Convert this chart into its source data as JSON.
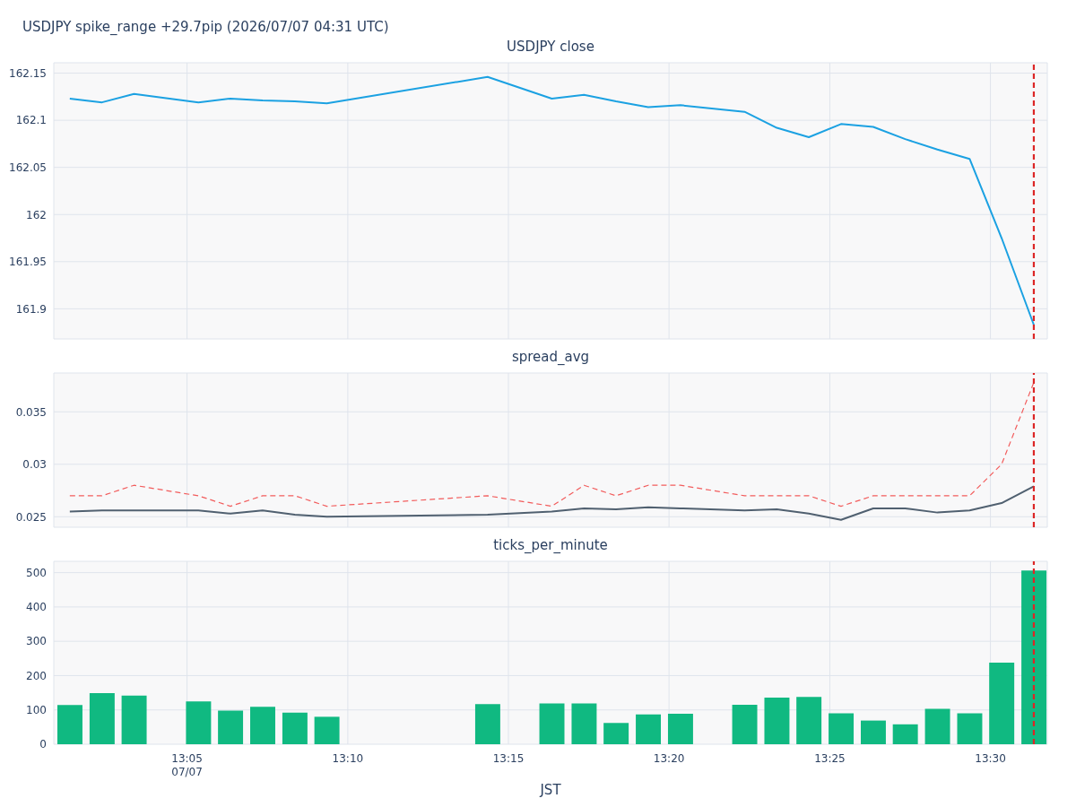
{
  "chart_data": [
    {
      "type": "line",
      "title": "USDJPY close",
      "annotations": [
        "USDJPY spike_range +29.7pip (2026/07/07 04:31 UTC)"
      ],
      "x": [
        13.0225,
        13.0392,
        13.0558,
        13.0892,
        13.1058,
        13.1225,
        13.1392,
        13.1558,
        13.2392,
        13.2725,
        13.2892,
        13.3058,
        13.3225,
        13.3392,
        13.3725,
        13.3892,
        13.4058,
        13.4225,
        13.4392,
        13.4558,
        13.4725,
        13.4892,
        13.5058,
        13.5225
      ],
      "series": [
        {
          "color": "#1ba1e2",
          "values": [
            162.123,
            162.119,
            162.128,
            162.119,
            162.123,
            162.121,
            162.12,
            162.118,
            162.146,
            162.123,
            162.127,
            162.12,
            162.114,
            162.116,
            162.109,
            162.092,
            162.082,
            162.096,
            162.093,
            162.08,
            162.069,
            162.059,
            161.975,
            161.883
          ]
        }
      ],
      "xlim": [
        13.0142,
        13.5295
      ],
      "xticks": [
        13.0833,
        13.1667,
        13.25,
        13.3333,
        13.4167,
        13.5
      ],
      "ylim": [
        161.868,
        162.161
      ],
      "yticks": [
        161.9,
        161.95,
        162,
        162.05,
        162.1,
        162.15
      ],
      "tick_labels": "y",
      "grid": true,
      "ref_lines": [
        {
          "axis": "x",
          "value": 13.5225,
          "color": "#dc2626",
          "line_style": "dashed"
        }
      ]
    },
    {
      "type": "line",
      "title": "spread_avg",
      "x": [
        13.0225,
        13.0392,
        13.0558,
        13.0892,
        13.1058,
        13.1225,
        13.1392,
        13.1558,
        13.2392,
        13.2725,
        13.2892,
        13.3058,
        13.3225,
        13.3392,
        13.3725,
        13.3892,
        13.4058,
        13.4225,
        13.4392,
        13.4558,
        13.4725,
        13.4892,
        13.5058,
        13.5225
      ],
      "series": [
        {
          "color": "#f25c5c",
          "line_style": "dashed",
          "values": [
            0.027,
            0.027,
            0.028,
            0.027,
            0.026,
            0.027,
            0.027,
            0.026,
            0.027,
            0.026,
            0.028,
            0.027,
            0.028,
            0.028,
            0.027,
            0.027,
            0.027,
            0.026,
            0.027,
            0.027,
            0.027,
            0.027,
            0.03,
            0.0378
          ]
        },
        {
          "color": "#506070",
          "line_style": "solid",
          "values": [
            0.0255,
            0.0256,
            0.0256,
            0.0256,
            0.0253,
            0.0256,
            0.0252,
            0.025,
            0.0252,
            0.0255,
            0.0258,
            0.0257,
            0.0259,
            0.0258,
            0.0256,
            0.0257,
            0.0253,
            0.0247,
            0.0258,
            0.0258,
            0.0254,
            0.0256,
            0.0263,
            0.0279
          ]
        }
      ],
      "xlim": [
        13.0142,
        13.5295
      ],
      "xticks": [
        13.0833,
        13.1667,
        13.25,
        13.3333,
        13.4167,
        13.5
      ],
      "ylim": [
        0.024,
        0.0387
      ],
      "yticks": [
        0.025,
        0.03,
        0.035
      ],
      "tick_labels": "y",
      "grid": true,
      "ref_lines": [
        {
          "axis": "x",
          "value": 13.5225,
          "color": "#dc2626",
          "line_style": "dashed"
        }
      ]
    },
    {
      "type": "bar",
      "title": "ticks_per_minute",
      "xlabel": "JST",
      "x": [
        13.0225,
        13.0392,
        13.0558,
        13.0892,
        13.1058,
        13.1225,
        13.1392,
        13.1558,
        13.2392,
        13.2725,
        13.2892,
        13.3058,
        13.3225,
        13.3392,
        13.3725,
        13.3892,
        13.4058,
        13.4225,
        13.4392,
        13.4558,
        13.4725,
        13.4892,
        13.5058,
        13.5225
      ],
      "series": [
        {
          "color": "#10b981",
          "values": [
            114,
            149,
            142,
            125,
            98,
            109,
            92,
            80,
            117,
            119,
            119,
            62,
            87,
            89,
            115,
            136,
            138,
            90,
            69,
            58,
            103,
            90,
            238,
            506
          ]
        }
      ],
      "xlim": [
        13.0142,
        13.5295
      ],
      "xticks": [
        {
          "value": 13.0833,
          "label": "13:05\n07/07"
        },
        {
          "value": 13.1667,
          "label": "13:10"
        },
        {
          "value": 13.25,
          "label": "13:15"
        },
        {
          "value": 13.3333,
          "label": "13:20"
        },
        {
          "value": 13.4167,
          "label": "13:25"
        },
        {
          "value": 13.5,
          "label": "13:30"
        }
      ],
      "ylim": [
        0,
        533
      ],
      "yticks": [
        0,
        100,
        200,
        300,
        400,
        500
      ],
      "grid": true,
      "ref_lines": [
        {
          "axis": "x",
          "value": 13.5225,
          "color": "#dc2626",
          "line_style": "dashed"
        }
      ]
    }
  ]
}
